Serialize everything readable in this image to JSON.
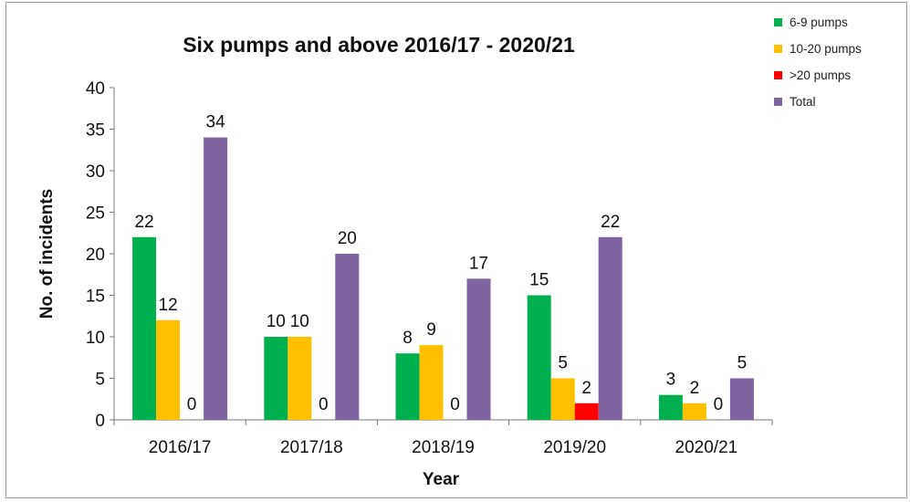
{
  "chart_data": {
    "type": "bar",
    "title": "Six pumps and above 2016/17 - 2020/21",
    "xlabel": "Year",
    "ylabel": "No. of incidents",
    "categories": [
      "2016/17",
      "2017/18",
      "2018/19",
      "2019/20",
      "2020/21"
    ],
    "ylim": [
      0,
      40
    ],
    "yticks": [
      0,
      5,
      10,
      15,
      20,
      25,
      30,
      35,
      40
    ],
    "grid": false,
    "legend_position": "top-right",
    "series": [
      {
        "name": "6-9 pumps",
        "color": "#00b050",
        "values": [
          22,
          10,
          8,
          15,
          3
        ]
      },
      {
        "name": "10-20 pumps",
        "color": "#ffc000",
        "values": [
          12,
          10,
          9,
          5,
          2
        ]
      },
      {
        "name": ">20 pumps",
        "color": "#ff0000",
        "values": [
          0,
          0,
          0,
          2,
          0
        ]
      },
      {
        "name": "Total",
        "color": "#8064a2",
        "values": [
          34,
          20,
          17,
          22,
          5
        ]
      }
    ]
  }
}
